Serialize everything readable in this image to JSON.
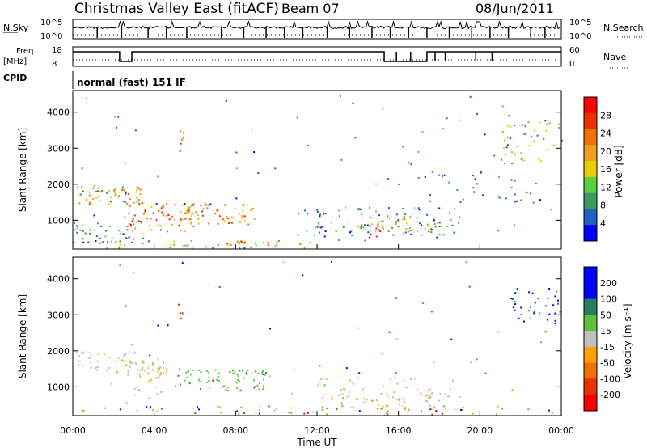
{
  "header": {
    "title": "Christmas Valley East (fitACF)",
    "beam": "Beam 07",
    "date": "08/Jun/2011"
  },
  "nsky_panel": {
    "label": "N.Sky",
    "left_ticks": [
      "10^5",
      "10^0"
    ],
    "right_ticks": [
      "10^5",
      "10^0"
    ],
    "right_label": "N.Search"
  },
  "freq_panel": {
    "label_line1": "Freq.",
    "label_line2": "[MHz]",
    "left_ticks": [
      "18",
      "8"
    ],
    "right_ticks": [
      "60",
      "0"
    ],
    "right_label": "Nave"
  },
  "cpid": {
    "label": "CPID",
    "value": "normal (fast) 151 IF"
  },
  "colors": {
    "power": [
      "#0000ff",
      "#2060c0",
      "#3a9a60",
      "#58d040",
      "#e8d000",
      "#f0a020",
      "#f07000",
      "#e83000",
      "#ff0000"
    ],
    "velocity_pos": [
      "#0000ff",
      "#208060",
      "#60c040"
    ],
    "velocity_gray": "#c0c0c0",
    "velocity_neg": [
      "#ffa000",
      "#f07000",
      "#e83000",
      "#ff0000"
    ]
  },
  "chart_data": [
    {
      "type": "heatmap",
      "name": "power",
      "ylabel": "Slant Range [km]",
      "yticks": [
        "1000",
        "2000",
        "3000",
        "4000"
      ],
      "ylim": [
        200,
        4600
      ],
      "xlim": [
        0,
        24
      ],
      "xticks": [
        "00:00",
        "04:00",
        "08:00",
        "12:00",
        "16:00",
        "20:00",
        "00:00"
      ],
      "colorbar_label": "Power [dB]",
      "colorbar_ticks": [
        "4",
        "8",
        "12",
        "16",
        "20",
        "24",
        "28"
      ],
      "colorbar_range": [
        0,
        30
      ]
    },
    {
      "type": "heatmap",
      "name": "velocity",
      "ylabel": "Slant Range [km]",
      "yticks": [
        "1000",
        "2000",
        "3000",
        "4000"
      ],
      "ylim": [
        200,
        4600
      ],
      "xlim": [
        0,
        24
      ],
      "xticks": [
        "00:00",
        "04:00",
        "08:00",
        "12:00",
        "16:00",
        "20:00",
        "00:00"
      ],
      "xlabel": "Time UT",
      "colorbar_label": "Velocity [m s⁻¹]",
      "colorbar_ticks": [
        "200",
        "100",
        "50",
        "15",
        "-15",
        "-50",
        "-100",
        "-200"
      ],
      "colorbar_range": [
        -250,
        250
      ]
    }
  ]
}
